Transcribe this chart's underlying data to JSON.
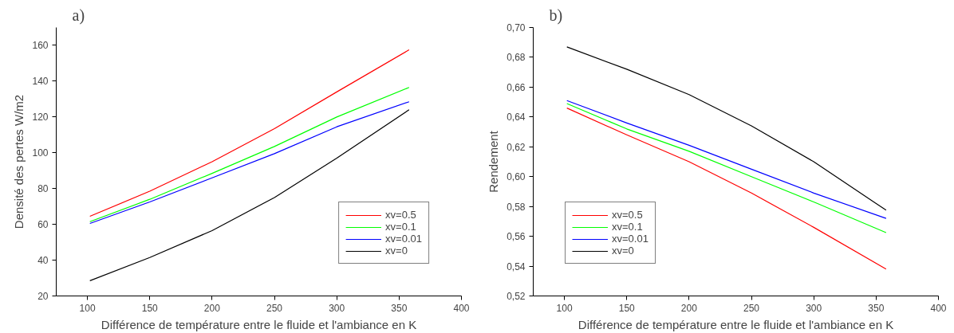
{
  "chart_data": [
    {
      "type": "line",
      "title": "a)",
      "xlabel": "Différence de température entre le fluide et l'ambiance en K",
      "ylabel": "Densité des pertes W/m2",
      "x": [
        102,
        150,
        200,
        250,
        300,
        358
      ],
      "xlim": [
        75,
        400
      ],
      "xticks": [
        100,
        150,
        200,
        250,
        300,
        350,
        400
      ],
      "ylim": [
        20,
        170
      ],
      "yticks": [
        20,
        40,
        60,
        80,
        100,
        120,
        140,
        160
      ],
      "grid": false,
      "legend": "bottom right",
      "marker": "none",
      "line_style": "solid",
      "series": [
        {
          "name": "xv=0.5",
          "color": "#ff0000",
          "values": [
            64.5,
            78.5,
            95,
            113.5,
            134,
            157.5
          ]
        },
        {
          "name": "xv=0.1",
          "color": "#00ff00",
          "values": [
            61.5,
            74,
            88.5,
            103.5,
            120,
            136.5
          ]
        },
        {
          "name": "xv=0.01",
          "color": "#0000ff",
          "values": [
            60.5,
            72.5,
            86,
            99.5,
            114.5,
            128.5
          ]
        },
        {
          "name": "xv=0",
          "color": "#000000",
          "values": [
            28.5,
            41.5,
            56.5,
            75,
            97,
            124
          ]
        }
      ]
    },
    {
      "type": "line",
      "title": "b)",
      "xlabel": "Différence de température entre le fluide et l'ambiance en K",
      "ylabel": "Rendement",
      "x": [
        102,
        150,
        200,
        250,
        300,
        358
      ],
      "xlim": [
        75,
        400
      ],
      "xticks": [
        100,
        150,
        200,
        250,
        300,
        350,
        400
      ],
      "ylim": [
        0.52,
        0.7
      ],
      "yticks": [
        {
          "value": 0.52,
          "label": "0,52"
        },
        {
          "value": 0.54,
          "label": "0,54"
        },
        {
          "value": 0.56,
          "label": "0,56"
        },
        {
          "value": 0.58,
          "label": "0,58"
        },
        {
          "value": 0.6,
          "label": "0,60"
        },
        {
          "value": 0.62,
          "label": "0,62"
        },
        {
          "value": 0.64,
          "label": "0,64"
        },
        {
          "value": 0.66,
          "label": "0,66"
        },
        {
          "value": 0.68,
          "label": "0,68"
        },
        {
          "value": 0.7,
          "label": "0,70"
        }
      ],
      "grid": false,
      "legend": "bottom left",
      "marker": "none",
      "line_style": "solid",
      "series": [
        {
          "name": "xv=0.5",
          "color": "#ff0000",
          "values": [
            0.646,
            0.628,
            0.61,
            0.589,
            0.566,
            0.538
          ]
        },
        {
          "name": "xv=0.1",
          "color": "#00ff00",
          "values": [
            0.649,
            0.632,
            0.617,
            0.6,
            0.583,
            0.5625
          ]
        },
        {
          "name": "xv=0.01",
          "color": "#0000ff",
          "values": [
            0.651,
            0.636,
            0.621,
            0.605,
            0.589,
            0.572
          ]
        },
        {
          "name": "xv=0",
          "color": "#000000",
          "values": [
            0.687,
            0.672,
            0.655,
            0.634,
            0.61,
            0.5775
          ]
        }
      ]
    }
  ]
}
